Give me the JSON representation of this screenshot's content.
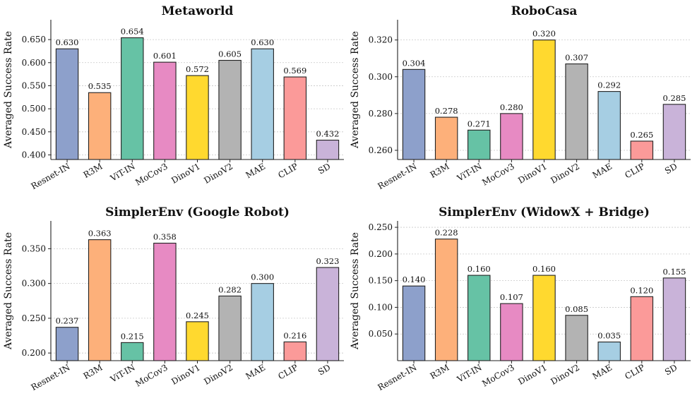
{
  "chart_data": [
    {
      "type": "bar",
      "title": "Metaworld",
      "ylabel": "Averaged Success Rate",
      "xlabel": "",
      "categories": [
        "Resnet-IN",
        "R3M",
        "ViT-IN",
        "MoCov3",
        "DinoV1",
        "DinoV2",
        "MAE",
        "CLIP",
        "SD"
      ],
      "values": [
        0.63,
        0.535,
        0.654,
        0.601,
        0.572,
        0.605,
        0.63,
        0.569,
        0.432
      ],
      "value_labels": [
        "0.630",
        "0.535",
        "0.654",
        "0.601",
        "0.572",
        "0.605",
        "0.630",
        "0.569",
        "0.432"
      ],
      "ylim": [
        0.39,
        0.693
      ],
      "yticks": [
        0.4,
        0.45,
        0.5,
        0.55,
        0.6,
        0.65
      ],
      "ytick_labels": [
        "0.400",
        "0.450",
        "0.500",
        "0.550",
        "0.600",
        "0.650"
      ],
      "grid": true
    },
    {
      "type": "bar",
      "title": "RoboCasa",
      "ylabel": "Averaged Success Rate",
      "xlabel": "",
      "categories": [
        "Resnet-IN",
        "R3M",
        "ViT-IN",
        "MoCov3",
        "DinoV1",
        "DinoV2",
        "MAE",
        "CLIP",
        "SD"
      ],
      "values": [
        0.304,
        0.278,
        0.271,
        0.28,
        0.32,
        0.307,
        0.292,
        0.265,
        0.285
      ],
      "value_labels": [
        "0.304",
        "0.278",
        "0.271",
        "0.280",
        "0.320",
        "0.307",
        "0.292",
        "0.265",
        "0.285"
      ],
      "ylim": [
        0.255,
        0.331
      ],
      "yticks": [
        0.26,
        0.28,
        0.3,
        0.32
      ],
      "ytick_labels": [
        "0.260",
        "0.280",
        "0.300",
        "0.320"
      ],
      "grid": true
    },
    {
      "type": "bar",
      "title": "SimplerEnv (Google Robot)",
      "ylabel": "Averaged Success Rate",
      "xlabel": "",
      "categories": [
        "Resnet-IN",
        "R3M",
        "ViT-IN",
        "MoCov3",
        "DinoV1",
        "DinoV2",
        "MAE",
        "CLIP",
        "SD"
      ],
      "values": [
        0.237,
        0.363,
        0.215,
        0.358,
        0.245,
        0.282,
        0.3,
        0.216,
        0.323
      ],
      "value_labels": [
        "0.237",
        "0.363",
        "0.215",
        "0.358",
        "0.245",
        "0.282",
        "0.300",
        "0.216",
        "0.323"
      ],
      "ylim": [
        0.189,
        0.39
      ],
      "yticks": [
        0.2,
        0.25,
        0.3,
        0.35
      ],
      "ytick_labels": [
        "0.200",
        "0.250",
        "0.300",
        "0.350"
      ],
      "grid": true
    },
    {
      "type": "bar",
      "title": "SimplerEnv (WidowX + Bridge)",
      "ylabel": "Averaged Success Rate",
      "xlabel": "",
      "categories": [
        "Resnet-IN",
        "R3M",
        "ViT-IN",
        "MoCov3",
        "DinoV1",
        "DinoV2",
        "MAE",
        "CLIP",
        "SD"
      ],
      "values": [
        0.14,
        0.228,
        0.16,
        0.107,
        0.16,
        0.085,
        0.035,
        0.12,
        0.155
      ],
      "value_labels": [
        "0.140",
        "0.228",
        "0.160",
        "0.107",
        "0.160",
        "0.085",
        "0.035",
        "0.120",
        "0.155"
      ],
      "ylim": [
        0.0,
        0.262
      ],
      "yticks": [
        0.05,
        0.1,
        0.15,
        0.2,
        0.25
      ],
      "ytick_labels": [
        "0.050",
        "0.100",
        "0.150",
        "0.200",
        "0.250"
      ],
      "grid": true
    }
  ],
  "colors": [
    "#8DA0CB",
    "#FDB07A",
    "#66C2A5",
    "#E78AC3",
    "#FFD92F",
    "#B3B3B3",
    "#A6CEE3",
    "#FB9A99",
    "#C9B3D9"
  ],
  "edge_color": "#222222"
}
